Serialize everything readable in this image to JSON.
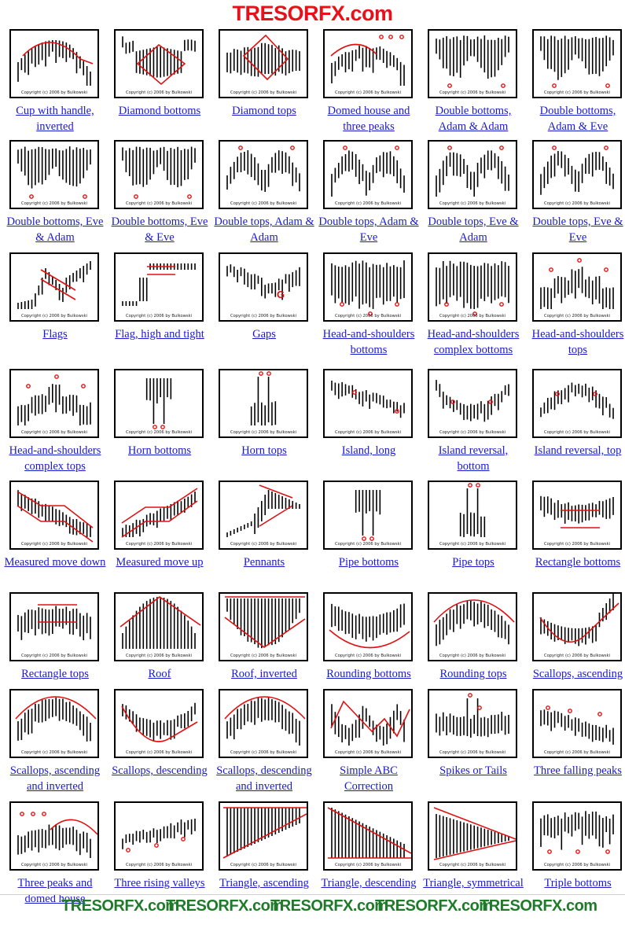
{
  "site_title": "TRESORFX.com",
  "copyright": "Copyright (c) 2006 by Bulkowski",
  "colors": {
    "title": "#e8101a",
    "link": "#1a1acd",
    "accent": "#e01010",
    "footer": "#1f7a2a"
  },
  "patterns": [
    {
      "label": "Cup with handle, inverted",
      "shape": "cup-inv"
    },
    {
      "label": "Diamond bottoms",
      "shape": "diamond-bot"
    },
    {
      "label": "Diamond tops",
      "shape": "diamond-top"
    },
    {
      "label": "Domed house and three peaks",
      "shape": "domed"
    },
    {
      "label": "Double bottoms, Adam & Adam",
      "shape": "dbot"
    },
    {
      "label": "Double bottoms, Adam & Eve",
      "shape": "dbot"
    },
    {
      "label": "Double bottoms, Eve & Adam",
      "shape": "dbot"
    },
    {
      "label": "Double bottoms, Eve & Eve",
      "shape": "dbot"
    },
    {
      "label": "Double tops, Adam & Adam",
      "shape": "dtop"
    },
    {
      "label": "Double tops, Adam & Eve",
      "shape": "dtop"
    },
    {
      "label": "Double tops, Eve & Adam",
      "shape": "dtop"
    },
    {
      "label": "Double tops, Eve & Eve",
      "shape": "dtop"
    },
    {
      "label": "Flags",
      "shape": "flag"
    },
    {
      "label": "Flag, high and tight",
      "shape": "hightight"
    },
    {
      "label": "Gaps",
      "shape": "gaps",
      "mark": "G"
    },
    {
      "label": "Head-and-shoulders bottoms",
      "shape": "hsbot"
    },
    {
      "label": "Head-and-shoulders complex bottoms",
      "shape": "hsbot"
    },
    {
      "label": "Head-and-shoulders tops",
      "shape": "hstop"
    },
    {
      "label": "Head-and-shoulders complex tops",
      "shape": "hstop"
    },
    {
      "label": "Horn bottoms",
      "shape": "hornbot"
    },
    {
      "label": "Horn tops",
      "shape": "horntop"
    },
    {
      "label": "Island, long",
      "shape": "island"
    },
    {
      "label": "Island reversal, bottom",
      "shape": "islandbot"
    },
    {
      "label": "Island reversal, top",
      "shape": "islandtop"
    },
    {
      "label": "Measured move down",
      "shape": "mmdown"
    },
    {
      "label": "Measured move up",
      "shape": "mmup"
    },
    {
      "label": "Pennants",
      "shape": "pennant"
    },
    {
      "label": "Pipe bottoms",
      "shape": "hornbot"
    },
    {
      "label": "Pipe tops",
      "shape": "horntop"
    },
    {
      "label": "Rectangle bottoms",
      "shape": "rectbot"
    },
    {
      "label": "Rectangle tops",
      "shape": "recttop"
    },
    {
      "label": "Roof",
      "shape": "roof"
    },
    {
      "label": "Roof, inverted",
      "shape": "roofinv"
    },
    {
      "label": "Rounding bottoms",
      "shape": "roundbot"
    },
    {
      "label": "Rounding tops",
      "shape": "roundtop"
    },
    {
      "label": "Scallops, ascending",
      "shape": "scalasc"
    },
    {
      "label": "Scallops, ascending and inverted",
      "shape": "roundtop"
    },
    {
      "label": "Scallops, descending",
      "shape": "scaldesc"
    },
    {
      "label": "Scallops, descending and inverted",
      "shape": "roundtop"
    },
    {
      "label": "Simple ABC Correction",
      "shape": "abc"
    },
    {
      "label": "Spikes or Tails",
      "shape": "spikes"
    },
    {
      "label": "Three falling peaks",
      "shape": "threefall"
    },
    {
      "label": "Three peaks and domed house",
      "shape": "threepeaks"
    },
    {
      "label": "Three rising valleys",
      "shape": "threerise"
    },
    {
      "label": "Triangle, ascending",
      "shape": "triasc"
    },
    {
      "label": "Triangle, descending",
      "shape": "tridesc"
    },
    {
      "label": "Triangle, symmetrical",
      "shape": "trisym"
    },
    {
      "label": "Triple bottoms",
      "shape": "triplebot"
    }
  ],
  "footer": {
    "watermarks": [
      "TRESORFX.com",
      "TRESORFX.com",
      "TRESORFX.com",
      "TRESORFX.com",
      "TRESORFX.com"
    ]
  }
}
